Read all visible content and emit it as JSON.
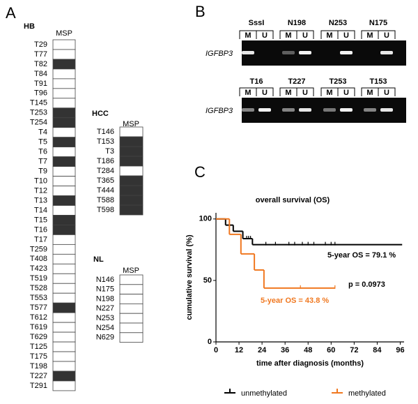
{
  "panel_labels": [
    "A",
    "B",
    "C"
  ],
  "panel_a": {
    "groups": [
      {
        "name": "HB",
        "header": "MSP",
        "samples": [
          "T29",
          "T77",
          "T82",
          "T84",
          "T91",
          "T96",
          "T145",
          "T253",
          "T254",
          "T4",
          "T5",
          "T6",
          "T7",
          "T9",
          "T10",
          "T12",
          "T13",
          "T14",
          "T15",
          "T16",
          "T17",
          "T259",
          "T408",
          "T423",
          "T519",
          "T528",
          "T553",
          "T577",
          "T612",
          "T619",
          "T629",
          "T125",
          "T175",
          "T198",
          "T227",
          "T291"
        ],
        "methylated": [
          false,
          false,
          true,
          false,
          false,
          false,
          false,
          true,
          true,
          false,
          true,
          false,
          true,
          false,
          false,
          false,
          true,
          false,
          true,
          true,
          false,
          false,
          false,
          false,
          false,
          false,
          false,
          true,
          false,
          false,
          false,
          false,
          false,
          false,
          true,
          false
        ]
      },
      {
        "name": "HCC",
        "header": "MSP",
        "samples": [
          "T146",
          "T153",
          "T3",
          "T186",
          "T284",
          "T365",
          "T444",
          "T588",
          "T598"
        ],
        "methylated": [
          false,
          true,
          true,
          true,
          false,
          true,
          true,
          true,
          true
        ]
      },
      {
        "name": "NL",
        "header": "MSP",
        "samples": [
          "N146",
          "N175",
          "N198",
          "N227",
          "N253",
          "N254",
          "N629"
        ],
        "methylated": [
          false,
          false,
          false,
          false,
          false,
          false,
          false
        ]
      }
    ]
  },
  "panel_b": {
    "gene": "IGFBP3",
    "lane_labels": [
      "M",
      "U"
    ],
    "rows": [
      [
        "SssI",
        "N198",
        "N253",
        "N175"
      ],
      [
        "T16",
        "T227",
        "T253",
        "T153"
      ]
    ]
  },
  "chart_data": {
    "type": "step",
    "title": "overall survival (OS)",
    "x_label": "time after diagnosis (months)",
    "y_label": "cumulative survival (%)",
    "xlim": [
      0,
      98
    ],
    "ylim": [
      0,
      105
    ],
    "xticks": [
      0,
      12,
      24,
      36,
      48,
      60,
      72,
      84,
      96
    ],
    "yticks": [
      0,
      50,
      100
    ],
    "series": [
      {
        "name": "unmethylated",
        "color": "#000000",
        "x": [
          0,
          5,
          9,
          14,
          19,
          97
        ],
        "values": [
          100,
          95,
          90,
          84,
          79.1,
          79.1
        ],
        "censored_x": [
          16,
          17,
          18,
          26,
          31,
          38,
          41,
          45,
          48,
          51,
          57,
          60,
          62
        ],
        "censored_values": [
          84,
          84,
          84,
          79.1,
          79.1,
          79.1,
          79.1,
          79.1,
          79.1,
          79.1,
          79.1,
          79.1,
          79.1
        ]
      },
      {
        "name": "methylated",
        "color": "#f07820",
        "x": [
          0,
          7,
          13,
          20,
          25,
          62
        ],
        "values": [
          100,
          87.5,
          71.6,
          58.5,
          43.8,
          43.8
        ],
        "censored_x": [
          44,
          62
        ],
        "censored_values": [
          43.8,
          43.8
        ]
      }
    ],
    "annotations": [
      "5-year OS = 79.1 %",
      "p = 0.0973",
      "5-year OS = 43.8 %"
    ]
  }
}
